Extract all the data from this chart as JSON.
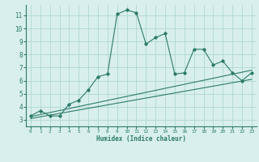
{
  "x_main": [
    0,
    1,
    2,
    3,
    4,
    5,
    6,
    7,
    8,
    9,
    10,
    11,
    12,
    13,
    14,
    15,
    16,
    17,
    18,
    19,
    20,
    21,
    22,
    23
  ],
  "y_main": [
    3.3,
    3.7,
    3.3,
    3.3,
    4.2,
    4.5,
    5.3,
    6.3,
    6.5,
    11.1,
    11.4,
    11.2,
    8.8,
    9.3,
    9.6,
    6.5,
    6.6,
    8.4,
    8.4,
    7.2,
    7.5,
    6.6,
    6.0,
    6.6
  ],
  "line_color": "#2d7a6a",
  "bg_color": "#d8efed",
  "grid_color": "#b0d8d4",
  "xlabel": "Humidex (Indice chaleur)",
  "xlim": [
    -0.5,
    23.5
  ],
  "ylim": [
    2.5,
    11.8
  ],
  "yticks": [
    3,
    4,
    5,
    6,
    7,
    8,
    9,
    10,
    11
  ],
  "xticks": [
    0,
    1,
    2,
    3,
    4,
    5,
    6,
    7,
    8,
    9,
    10,
    11,
    12,
    13,
    14,
    15,
    16,
    17,
    18,
    19,
    20,
    21,
    22,
    23
  ],
  "trend1_x": [
    0,
    23
  ],
  "trend1_y": [
    3.25,
    6.8
  ],
  "trend2_x": [
    0,
    23
  ],
  "trend2_y": [
    3.1,
    6.1
  ],
  "axis_color": "#2d7a6a"
}
